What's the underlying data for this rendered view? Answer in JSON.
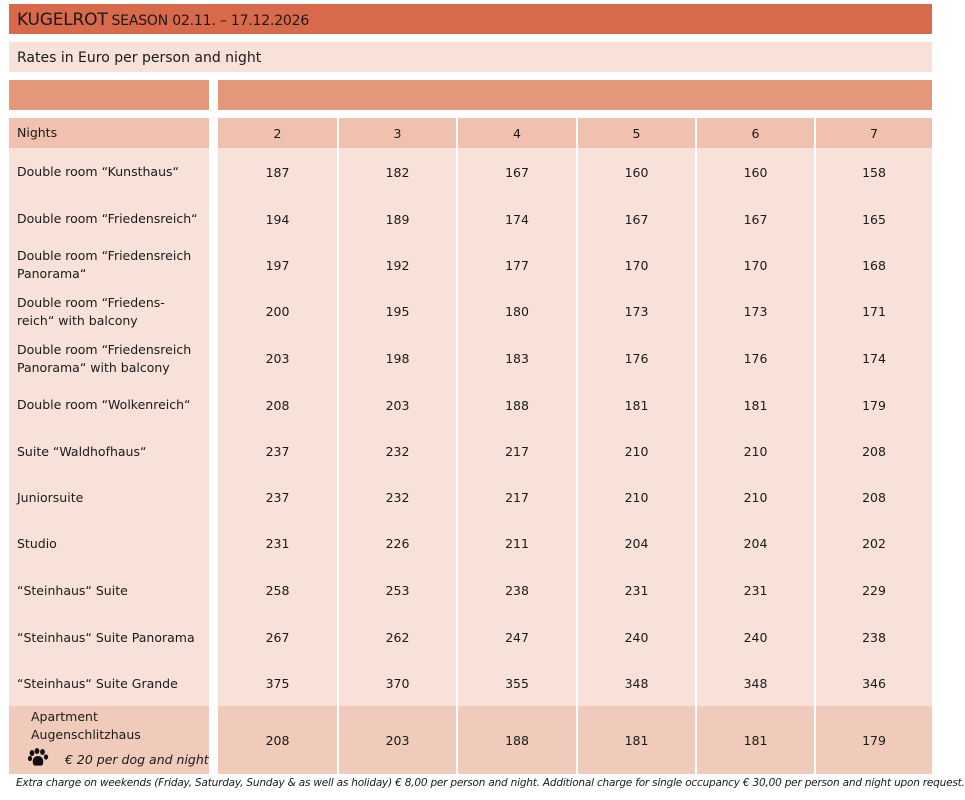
{
  "title": {
    "brand": "KUGELROT",
    "season": "SEASON 02.11. – 17.12.2026"
  },
  "subtitle": "Rates in Euro per person and night",
  "colors": {
    "title_bar": "#D9694B",
    "subtitle_bar": "#F7E1D8",
    "header_band": "#E5977A",
    "nights_row": "#F0C1AF",
    "body_row": "#F7E1D8",
    "apartment_row": "#F0CBBB"
  },
  "table": {
    "header_label": "Nights",
    "nights": [
      "2",
      "3",
      "4",
      "5",
      "6",
      "7"
    ],
    "rows": [
      {
        "label_lines": [
          "Double room “Kunsthaus“"
        ],
        "values": [
          "187",
          "182",
          "167",
          "160",
          "160",
          "158"
        ]
      },
      {
        "label_lines": [
          "Double room “Friedensreich“"
        ],
        "values": [
          "194",
          "189",
          "174",
          "167",
          "167",
          "165"
        ]
      },
      {
        "label_lines": [
          "Double room “Friedensreich",
          "Panorama“"
        ],
        "values": [
          "197",
          "192",
          "177",
          "170",
          "170",
          "168"
        ]
      },
      {
        "label_lines": [
          "Double room “Friedens-",
          "reich“ with balcony"
        ],
        "values": [
          "200",
          "195",
          "180",
          "173",
          "173",
          "171"
        ]
      },
      {
        "label_lines": [
          "Double room “Friedensreich",
          "Panorama“ with balcony"
        ],
        "values": [
          "203",
          "198",
          "183",
          "176",
          "176",
          "174"
        ]
      },
      {
        "label_lines": [
          "Double room “Wolkenreich“"
        ],
        "values": [
          "208",
          "203",
          "188",
          "181",
          "181",
          "179"
        ]
      },
      {
        "label_lines": [
          "Suite “Waldhofhaus“"
        ],
        "values": [
          "237",
          "232",
          "217",
          "210",
          "210",
          "208"
        ]
      },
      {
        "label_lines": [
          "Juniorsuite"
        ],
        "values": [
          "237",
          "232",
          "217",
          "210",
          "210",
          "208"
        ]
      },
      {
        "label_lines": [
          "Studio"
        ],
        "values": [
          "231",
          "226",
          "211",
          "204",
          "204",
          "202"
        ]
      },
      {
        "label_lines": [
          "“Steinhaus“ Suite"
        ],
        "values": [
          "258",
          "253",
          "238",
          "231",
          "231",
          "229"
        ]
      },
      {
        "label_lines": [
          "“Steinhaus“ Suite Panorama"
        ],
        "values": [
          "267",
          "262",
          "247",
          "240",
          "240",
          "238"
        ]
      },
      {
        "label_lines": [
          "“Steinhaus“ Suite Grande"
        ],
        "values": [
          "375",
          "370",
          "355",
          "348",
          "348",
          "346"
        ]
      }
    ],
    "apartment": {
      "label": "Apartment Augenschlitzhaus",
      "dog_icon": "paw-print-icon",
      "dog_note": "€ 20 per dog and night",
      "values": [
        "208",
        "203",
        "188",
        "181",
        "181",
        "179"
      ]
    }
  },
  "footer": "Extra charge on weekends (Friday, Saturday, Sunday & as well as holiday) € 8,00 per person and night. Additional charge for single occupancy € 30,00 per person and night upon request."
}
